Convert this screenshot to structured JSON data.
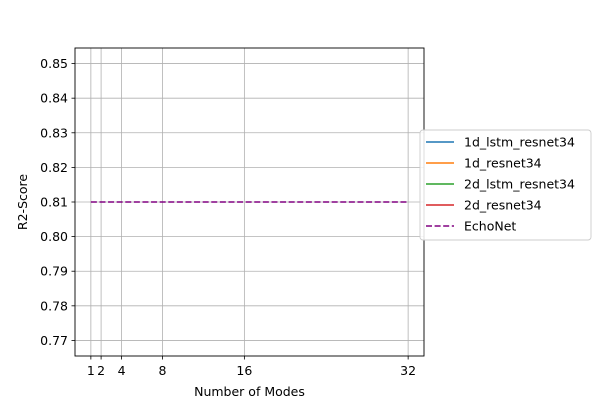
{
  "chart_data": {
    "type": "line",
    "title": "",
    "xlabel": "Number of  Modes",
    "ylabel": "R2-Score",
    "x_ticks": [
      1,
      2,
      4,
      8,
      16,
      32
    ],
    "y_ticks": [
      0.77,
      0.78,
      0.79,
      0.8,
      0.81,
      0.82,
      0.83,
      0.84,
      0.85
    ],
    "y_tick_labels": [
      "0.77",
      "0.78",
      "0.79",
      "0.80",
      "0.81",
      "0.82",
      "0.83",
      "0.84",
      "0.85"
    ],
    "xlim": [
      -0.55,
      33.55
    ],
    "ylim": [
      0.7655,
      0.8545
    ],
    "grid": true,
    "legend_position": "center-right outside",
    "series": [
      {
        "name": "1d_lstm_resnet34",
        "color": "#1f77b4",
        "dash": "solid",
        "x": [],
        "y": []
      },
      {
        "name": "1d_resnet34",
        "color": "#ff7f0e",
        "dash": "solid",
        "x": [],
        "y": []
      },
      {
        "name": "2d_lstm_resnet34",
        "color": "#2ca02c",
        "dash": "solid",
        "x": [],
        "y": []
      },
      {
        "name": "2d_resnet34",
        "color": "#d62728",
        "dash": "solid",
        "x": [],
        "y": []
      },
      {
        "name": "EchoNet",
        "color": "#800080",
        "dash": "dashed",
        "x": [
          1,
          32
        ],
        "y": [
          0.81,
          0.81
        ]
      }
    ]
  }
}
